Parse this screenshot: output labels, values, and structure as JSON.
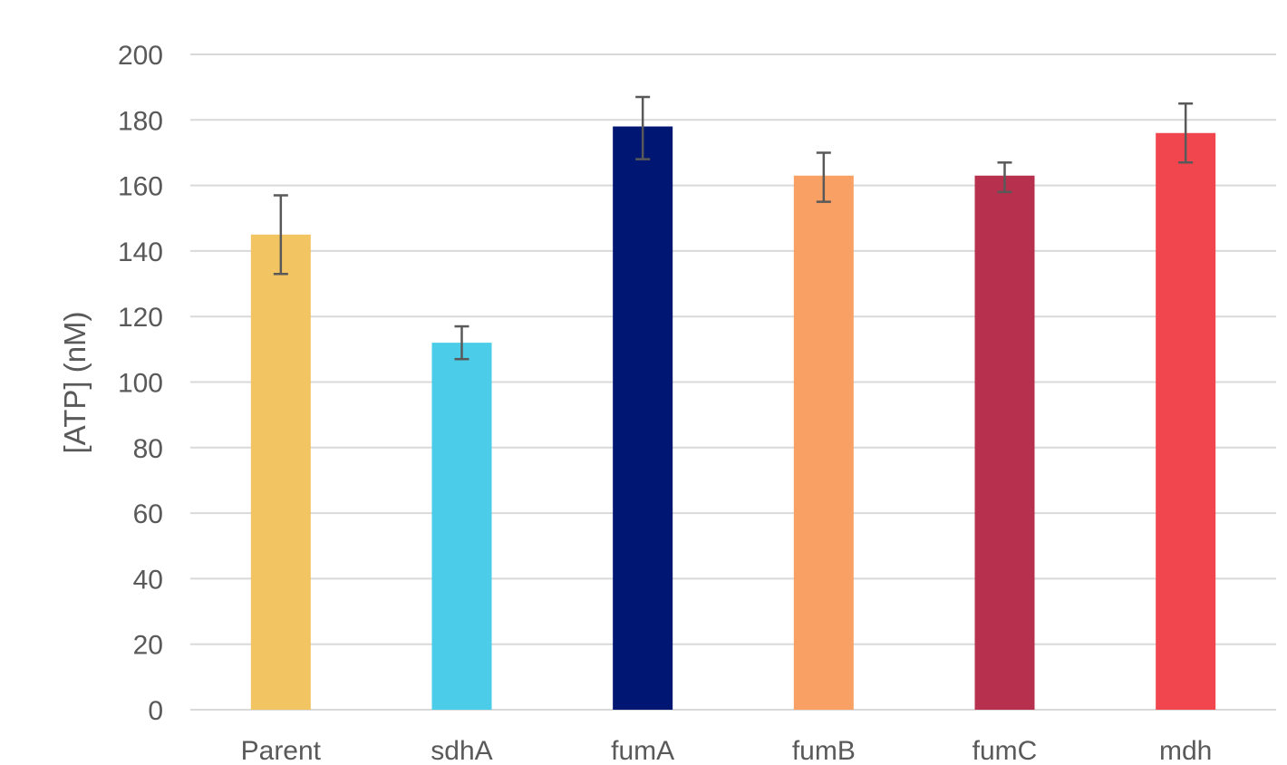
{
  "chart_data": {
    "type": "bar",
    "title": "",
    "xlabel": "",
    "ylabel": "[ATP] (nM)",
    "ylim": [
      0,
      200
    ],
    "ytick_step": 20,
    "grid": true,
    "legend": "none",
    "categories": [
      "Parent",
      "sdhA",
      "fumA",
      "fumB",
      "fumC",
      "mdh"
    ],
    "values": [
      145,
      112,
      178,
      163,
      163,
      176
    ],
    "error_low": [
      133,
      107,
      168,
      155,
      158,
      167
    ],
    "error_high": [
      157,
      117,
      187,
      170,
      167,
      185
    ],
    "colors": [
      "#f2c462",
      "#4bcce8",
      "#001673",
      "#f9a064",
      "#b7304e",
      "#f2464f"
    ]
  }
}
